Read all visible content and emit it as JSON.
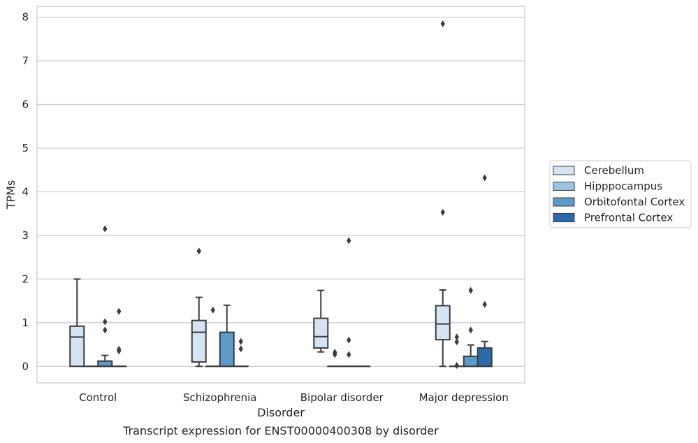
{
  "chart_data": {
    "type": "box",
    "xlabel": "Disorder",
    "ylabel": "TPMs",
    "caption": "Transcript expression for ENST00000400308 by disorder",
    "categories": [
      "Control",
      "Schizophrenia",
      "Bipolar disorder",
      "Major depression"
    ],
    "ylim": [
      -0.38,
      8.25
    ],
    "yticks": [
      0,
      1,
      2,
      3,
      4,
      5,
      6,
      7,
      8
    ],
    "grid": "horizontal",
    "legend_position": "right",
    "series": [
      {
        "name": "Cerebellum",
        "color": "#d5e4f2",
        "boxes": [
          {
            "category": "Control",
            "whisker_low": 0,
            "q1": 0,
            "median": 0.67,
            "q3": 0.92,
            "whisker_high": 2.0,
            "outliers": []
          },
          {
            "category": "Schizophrenia",
            "whisker_low": 0,
            "q1": 0.1,
            "median": 0.78,
            "q3": 1.05,
            "whisker_high": 1.58,
            "outliers": [
              2.64
            ]
          },
          {
            "category": "Bipolar disorder",
            "whisker_low": 0.33,
            "q1": 0.42,
            "median": 0.68,
            "q3": 1.1,
            "whisker_high": 1.74,
            "outliers": []
          },
          {
            "category": "Major depression",
            "whisker_low": 0,
            "q1": 0.61,
            "median": 0.97,
            "q3": 1.39,
            "whisker_high": 1.75,
            "outliers": [
              3.53,
              7.85
            ]
          }
        ]
      },
      {
        "name": "Hipppocampus",
        "color": "#9cc4e0",
        "boxes": [
          {
            "category": "Control",
            "whisker_low": 0,
            "q1": 0,
            "median": 0,
            "q3": 0,
            "whisker_high": 0,
            "outliers": []
          },
          {
            "category": "Schizophrenia",
            "whisker_low": 0,
            "q1": 0,
            "median": 0,
            "q3": 0,
            "whisker_high": 0,
            "outliers": [
              1.29
            ]
          },
          {
            "category": "Bipolar disorder",
            "whisker_low": 0,
            "q1": 0,
            "median": 0,
            "q3": 0,
            "whisker_high": 0,
            "outliers": [
              0.27,
              0.32
            ]
          },
          {
            "category": "Major depression",
            "whisker_low": 0,
            "q1": 0,
            "median": 0,
            "q3": 0,
            "whisker_high": 0,
            "outliers": [
              0.02,
              0.56,
              0.67
            ]
          }
        ]
      },
      {
        "name": "Orbitofontal Cortex",
        "color": "#5b9bc8",
        "boxes": [
          {
            "category": "Control",
            "whisker_low": 0,
            "q1": 0,
            "median": 0,
            "q3": 0.12,
            "whisker_high": 0.25,
            "outliers": [
              0.83,
              1.02,
              3.15
            ]
          },
          {
            "category": "Schizophrenia",
            "whisker_low": 0,
            "q1": 0,
            "median": 0,
            "q3": 0.78,
            "whisker_high": 1.4,
            "outliers": []
          },
          {
            "category": "Bipolar disorder",
            "whisker_low": 0,
            "q1": 0,
            "median": 0,
            "q3": 0,
            "whisker_high": 0,
            "outliers": [
              0.27,
              0.6,
              2.88
            ]
          },
          {
            "category": "Major depression",
            "whisker_low": 0,
            "q1": 0,
            "median": 0,
            "q3": 0.23,
            "whisker_high": 0.49,
            "outliers": [
              0.83,
              1.74
            ]
          }
        ]
      },
      {
        "name": "Prefrontal Cortex",
        "color": "#2a6aad",
        "boxes": [
          {
            "category": "Control",
            "whisker_low": 0,
            "q1": 0,
            "median": 0,
            "q3": 0,
            "whisker_high": 0,
            "outliers": [
              0.35,
              0.39,
              1.26
            ]
          },
          {
            "category": "Schizophrenia",
            "whisker_low": 0,
            "q1": 0,
            "median": 0,
            "q3": 0,
            "whisker_high": 0,
            "outliers": [
              0.4,
              0.57
            ]
          },
          {
            "category": "Bipolar disorder",
            "whisker_low": 0,
            "q1": 0,
            "median": 0,
            "q3": 0,
            "whisker_high": 0,
            "outliers": []
          },
          {
            "category": "Major depression",
            "whisker_low": 0,
            "q1": 0,
            "median": 0,
            "q3": 0.42,
            "whisker_high": 0.57,
            "outliers": [
              1.42,
              4.32
            ]
          }
        ]
      }
    ]
  }
}
